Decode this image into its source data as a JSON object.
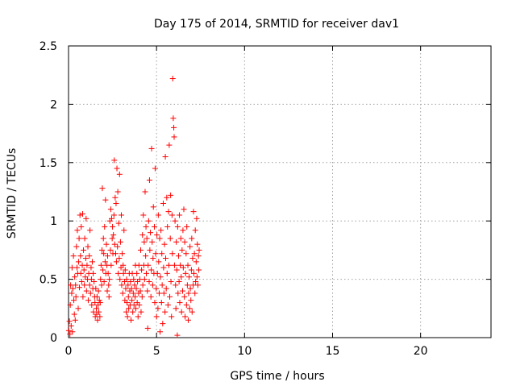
{
  "chart_data": {
    "type": "scatter",
    "title": "Day 175 of 2014, SRMTID for receiver dav1",
    "xlabel": "GPS time / hours",
    "ylabel": "SRMTID / TECUs",
    "xlim": [
      0,
      24
    ],
    "ylim": [
      0,
      2.5
    ],
    "xticks": [
      0,
      5,
      10,
      15,
      20
    ],
    "xtick_labels": [
      "0",
      "5",
      "10",
      "15",
      "20"
    ],
    "yticks": [
      0,
      0.5,
      1,
      1.5,
      2,
      2.5
    ],
    "ytick_labels": [
      "0",
      "0.5",
      "1",
      "1.5",
      "2",
      "2.5"
    ],
    "grid": true,
    "marker": "+",
    "color": "#ff0000",
    "series": [
      {
        "name": "SRMTID",
        "points": [
          [
            0.02,
            0.06
          ],
          [
            0.05,
            0.14
          ],
          [
            0.08,
            0.03
          ],
          [
            0.1,
            0.28
          ],
          [
            0.12,
            0.45
          ],
          [
            0.15,
            0.1
          ],
          [
            0.18,
            0.38
          ],
          [
            0.2,
            0.6
          ],
          [
            0.22,
            0.05
          ],
          [
            0.25,
            0.42
          ],
          [
            0.28,
            0.7
          ],
          [
            0.3,
            0.32
          ],
          [
            0.33,
            0.2
          ],
          [
            0.35,
            0.52
          ],
          [
            0.38,
            0.15
          ],
          [
            0.4,
            0.45
          ],
          [
            0.42,
            0.35
          ],
          [
            0.45,
            0.78
          ],
          [
            0.48,
            0.6
          ],
          [
            0.5,
            0.92
          ],
          [
            0.52,
            0.55
          ],
          [
            0.55,
            0.25
          ],
          [
            0.57,
            0.65
          ],
          [
            0.6,
            0.85
          ],
          [
            0.62,
            0.43
          ],
          [
            0.65,
            1.05
          ],
          [
            0.68,
            0.7
          ],
          [
            0.7,
            0.55
          ],
          [
            0.72,
            0.95
          ],
          [
            0.75,
            0.48
          ],
          [
            0.78,
            0.62
          ],
          [
            0.8,
            1.06
          ],
          [
            0.82,
            0.35
          ],
          [
            0.85,
            0.75
          ],
          [
            0.88,
            0.58
          ],
          [
            0.9,
            0.45
          ],
          [
            0.92,
            0.85
          ],
          [
            0.95,
            0.52
          ],
          [
            0.98,
            0.68
          ],
          [
            1.0,
            1.02
          ],
          [
            1.02,
            0.4
          ],
          [
            1.05,
            0.62
          ],
          [
            1.08,
            0.5
          ],
          [
            1.1,
            0.78
          ],
          [
            1.12,
            0.32
          ],
          [
            1.15,
            0.55
          ],
          [
            1.18,
            0.7
          ],
          [
            1.2,
            0.45
          ],
          [
            1.22,
            0.92
          ],
          [
            1.25,
            0.38
          ],
          [
            1.28,
            0.6
          ],
          [
            1.3,
            0.5
          ],
          [
            1.32,
            0.28
          ],
          [
            1.35,
            0.65
          ],
          [
            1.38,
            0.42
          ],
          [
            1.4,
            0.55
          ],
          [
            1.42,
            0.22
          ],
          [
            1.45,
            0.48
          ],
          [
            1.48,
            0.35
          ],
          [
            1.5,
            0.3
          ],
          [
            1.52,
            0.18
          ],
          [
            1.55,
            0.42
          ],
          [
            1.58,
            0.25
          ],
          [
            1.6,
            0.2
          ],
          [
            1.62,
            0.35
          ],
          [
            1.65,
            0.15
          ],
          [
            1.68,
            0.28
          ],
          [
            1.7,
            0.4
          ],
          [
            1.72,
            0.22
          ],
          [
            1.75,
            0.32
          ],
          [
            1.78,
            0.18
          ],
          [
            1.8,
            0.3
          ],
          [
            1.82,
            0.5
          ],
          [
            1.85,
            0.62
          ],
          [
            1.88,
            0.45
          ],
          [
            1.9,
            0.75
          ],
          [
            1.92,
            1.28
          ],
          [
            1.95,
            0.58
          ],
          [
            1.98,
            0.85
          ],
          [
            2.0,
            0.72
          ],
          [
            2.02,
            0.48
          ],
          [
            2.05,
            0.95
          ],
          [
            2.08,
            0.65
          ],
          [
            2.1,
            1.18
          ],
          [
            2.12,
            0.55
          ],
          [
            2.15,
            0.8
          ],
          [
            2.18,
            0.62
          ],
          [
            2.2,
            0.4
          ],
          [
            2.22,
            0.7
          ],
          [
            2.25,
            0.55
          ],
          [
            2.28,
            0.45
          ],
          [
            2.3,
            0.35
          ],
          [
            2.32,
            0.5
          ],
          [
            2.35,
            1.0
          ],
          [
            2.38,
            0.75
          ],
          [
            2.4,
            1.1
          ],
          [
            2.42,
            0.62
          ],
          [
            2.45,
            1.02
          ],
          [
            2.48,
            0.85
          ],
          [
            2.5,
            0.95
          ],
          [
            2.52,
            0.72
          ],
          [
            2.55,
            0.88
          ],
          [
            2.58,
            1.05
          ],
          [
            2.6,
            1.52
          ],
          [
            2.62,
            0.8
          ],
          [
            2.65,
            1.2
          ],
          [
            2.68,
            0.72
          ],
          [
            2.7,
            1.15
          ],
          [
            2.72,
            0.65
          ],
          [
            2.75,
            1.45
          ],
          [
            2.78,
            0.78
          ],
          [
            2.8,
            1.25
          ],
          [
            2.82,
            0.55
          ],
          [
            2.85,
            0.98
          ],
          [
            2.88,
            0.68
          ],
          [
            2.9,
            1.4
          ],
          [
            2.92,
            0.5
          ],
          [
            2.95,
            0.82
          ],
          [
            2.98,
            0.6
          ],
          [
            3.0,
            1.05
          ],
          [
            3.02,
            0.45
          ],
          [
            3.05,
            0.72
          ],
          [
            3.08,
            0.38
          ],
          [
            3.1,
            0.62
          ],
          [
            3.12,
            0.55
          ],
          [
            3.15,
            0.92
          ],
          [
            3.18,
            0.48
          ],
          [
            3.2,
            0.32
          ],
          [
            3.22,
            0.58
          ],
          [
            3.25,
            0.42
          ],
          [
            3.28,
            0.22
          ],
          [
            3.3,
            0.5
          ],
          [
            3.32,
            0.3
          ],
          [
            3.35,
            0.18
          ],
          [
            3.38,
            0.45
          ],
          [
            3.4,
            0.35
          ],
          [
            3.42,
            0.25
          ],
          [
            3.45,
            0.55
          ],
          [
            3.48,
            0.4
          ],
          [
            3.5,
            0.28
          ],
          [
            3.52,
            0.48
          ],
          [
            3.55,
            0.15
          ],
          [
            3.58,
            0.42
          ],
          [
            3.6,
            0.32
          ],
          [
            3.62,
            0.55
          ],
          [
            3.65,
            0.22
          ],
          [
            3.68,
            0.38
          ],
          [
            3.7,
            0.5
          ],
          [
            3.72,
            0.28
          ],
          [
            3.75,
            0.45
          ],
          [
            3.78,
            0.35
          ],
          [
            3.8,
            0.62
          ],
          [
            3.82,
            0.25
          ],
          [
            3.85,
            0.42
          ],
          [
            3.88,
            0.55
          ],
          [
            3.9,
            0.3
          ],
          [
            3.92,
            0.48
          ],
          [
            3.95,
            0.18
          ],
          [
            3.98,
            0.38
          ],
          [
            4.0,
            0.62
          ],
          [
            4.02,
            0.28
          ],
          [
            4.05,
            0.5
          ],
          [
            4.08,
            0.4
          ],
          [
            4.1,
            0.75
          ],
          [
            4.12,
            0.22
          ],
          [
            4.15,
            0.58
          ],
          [
            4.18,
            0.35
          ],
          [
            4.2,
            0.88
          ],
          [
            4.22,
            0.45
          ],
          [
            4.25,
            1.05
          ],
          [
            4.28,
            0.62
          ],
          [
            4.3,
            0.82
          ],
          [
            4.32,
            0.5
          ],
          [
            4.35,
            1.25
          ],
          [
            4.38,
            0.7
          ],
          [
            4.4,
            0.95
          ],
          [
            4.42,
            0.55
          ],
          [
            4.45,
            0.85
          ],
          [
            4.48,
            0.4
          ],
          [
            4.5,
            0.08
          ],
          [
            4.52,
            0.62
          ],
          [
            4.55,
            1.0
          ],
          [
            4.58,
            0.48
          ],
          [
            4.6,
            1.35
          ],
          [
            4.62,
            0.75
          ],
          [
            4.65,
            0.9
          ],
          [
            4.68,
            0.35
          ],
          [
            4.7,
            0.58
          ],
          [
            4.72,
            1.62
          ],
          [
            4.75,
            0.82
          ],
          [
            4.78,
            0.45
          ],
          [
            4.8,
            0.68
          ],
          [
            4.82,
            1.12
          ],
          [
            4.85,
            0.55
          ],
          [
            4.88,
            0.95
          ],
          [
            4.9,
            0.3
          ],
          [
            4.92,
            1.45
          ],
          [
            4.95,
            0.72
          ],
          [
            4.98,
            0.42
          ],
          [
            5.0,
            0.18
          ],
          [
            5.02,
            0.88
          ],
          [
            5.05,
            0.55
          ],
          [
            5.08,
            0.25
          ],
          [
            5.1,
            1.05
          ],
          [
            5.12,
            0.65
          ],
          [
            5.15,
            0.38
          ],
          [
            5.18,
            0.85
          ],
          [
            5.2,
            0.05
          ],
          [
            5.22,
            0.52
          ],
          [
            5.25,
            0.92
          ],
          [
            5.28,
            0.3
          ],
          [
            5.3,
            0.72
          ],
          [
            5.32,
            0.45
          ],
          [
            5.35,
            0.12
          ],
          [
            5.38,
            1.15
          ],
          [
            5.4,
            0.6
          ],
          [
            5.42,
            0.38
          ],
          [
            5.45,
            0.8
          ],
          [
            5.48,
            0.22
          ],
          [
            5.5,
            1.55
          ],
          [
            5.52,
            0.68
          ],
          [
            5.55,
            0.42
          ],
          [
            5.58,
            1.2
          ],
          [
            5.6,
            0.55
          ],
          [
            5.62,
            0.95
          ],
          [
            5.65,
            0.28
          ],
          [
            5.68,
            1.08
          ],
          [
            5.7,
            0.62
          ],
          [
            5.72,
            1.65
          ],
          [
            5.75,
            0.35
          ],
          [
            5.78,
            0.85
          ],
          [
            5.8,
            1.22
          ],
          [
            5.82,
            0.48
          ],
          [
            5.85,
            0.18
          ],
          [
            5.88,
            1.05
          ],
          [
            5.9,
            0.72
          ],
          [
            5.92,
            2.22
          ],
          [
            5.95,
            1.88
          ],
          [
            5.98,
            1.8
          ],
          [
            6.0,
            1.72
          ],
          [
            6.02,
            0.62
          ],
          [
            6.05,
            1.0
          ],
          [
            6.08,
            0.45
          ],
          [
            6.1,
            0.25
          ],
          [
            6.12,
            0.82
          ],
          [
            6.15,
            0.58
          ],
          [
            6.18,
            0.02
          ],
          [
            6.2,
            0.95
          ],
          [
            6.22,
            0.38
          ],
          [
            6.25,
            0.7
          ],
          [
            6.28,
            0.48
          ],
          [
            6.3,
            1.05
          ],
          [
            6.32,
            0.3
          ],
          [
            6.35,
            0.62
          ],
          [
            6.38,
            0.85
          ],
          [
            6.4,
            0.52
          ],
          [
            6.42,
            0.22
          ],
          [
            6.45,
            0.75
          ],
          [
            6.48,
            0.4
          ],
          [
            6.5,
            0.92
          ],
          [
            6.52,
            0.6
          ],
          [
            6.55,
            1.1
          ],
          [
            6.58,
            0.35
          ],
          [
            6.6,
            0.82
          ],
          [
            6.62,
            0.18
          ],
          [
            6.65,
            0.55
          ],
          [
            6.68,
            0.72
          ],
          [
            6.7,
            0.28
          ],
          [
            6.72,
            0.95
          ],
          [
            6.75,
            0.45
          ],
          [
            6.78,
            0.62
          ],
          [
            6.8,
            0.15
          ],
          [
            6.82,
            0.38
          ],
          [
            6.85,
            0.52
          ],
          [
            6.88,
            0.25
          ],
          [
            6.9,
            0.78
          ],
          [
            6.92,
            0.42
          ],
          [
            6.95,
            0.32
          ],
          [
            6.98,
            0.58
          ],
          [
            7.0,
            0.85
          ],
          [
            7.02,
            0.22
          ],
          [
            7.05,
            0.68
          ],
          [
            7.08,
            0.45
          ],
          [
            7.1,
            1.08
          ],
          [
            7.12,
            0.55
          ],
          [
            7.15,
            0.72
          ],
          [
            7.18,
            0.38
          ],
          [
            7.2,
            0.92
          ],
          [
            7.22,
            0.48
          ],
          [
            7.25,
            0.65
          ],
          [
            7.28,
            1.02
          ],
          [
            7.3,
            0.52
          ],
          [
            7.32,
            0.8
          ],
          [
            7.35,
            0.45
          ],
          [
            7.38,
            0.7
          ],
          [
            7.4,
            0.58
          ],
          [
            7.42,
            0.75
          ]
        ]
      }
    ]
  }
}
